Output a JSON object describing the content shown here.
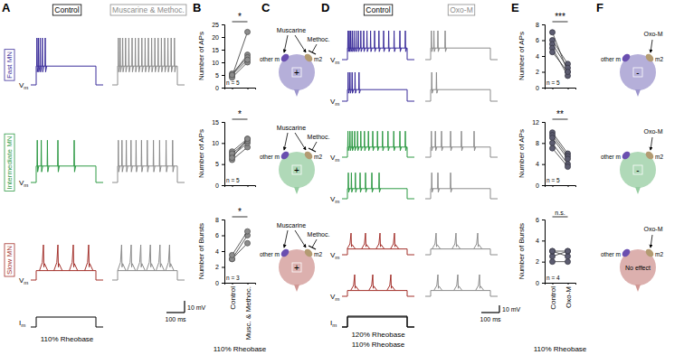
{
  "chart_data": [
    {
      "type": "line",
      "y_label": "Number of APs",
      "categories": [
        null,
        null
      ],
      "series": [
        {
          "values": [
            4.5,
            22
          ]
        },
        {
          "values": [
            5,
            13
          ]
        },
        {
          "values": [
            5.5,
            12
          ]
        },
        {
          "values": [
            4,
            10
          ]
        },
        {
          "values": [
            5,
            11
          ]
        }
      ],
      "color": "#8c8c8c",
      "marker": "circle",
      "ylim": [
        0,
        25
      ],
      "yticks": [
        0,
        5,
        10,
        15,
        20,
        25
      ],
      "annotations": [
        "*",
        "n = 5"
      ]
    },
    {
      "type": "line",
      "y_label": "Number of APs",
      "categories": [
        null,
        null
      ],
      "series": [
        {
          "values": [
            6,
            9
          ]
        },
        {
          "values": [
            7,
            10
          ]
        },
        {
          "values": [
            8,
            11
          ]
        },
        {
          "values": [
            7.5,
            10.5
          ]
        },
        {
          "values": [
            6.5,
            11
          ]
        }
      ],
      "color": "#8c8c8c",
      "marker": "circle",
      "ylim": [
        0,
        15
      ],
      "yticks": [
        0,
        5,
        10,
        15
      ],
      "annotations": [
        "*",
        "n = 5"
      ]
    },
    {
      "type": "line",
      "y_label": "Number of Bursts",
      "x_label": "110% Rheobase",
      "categories": [
        "Control",
        "Musc. & Methoc."
      ],
      "series": [
        {
          "values": [
            3,
            6
          ]
        },
        {
          "values": [
            3,
            5
          ]
        },
        {
          "values": [
            3.5,
            6.5
          ]
        }
      ],
      "color": "#8c8c8c",
      "marker": "circle",
      "ylim": [
        0,
        8
      ],
      "yticks": [
        0,
        2,
        4,
        6,
        8
      ],
      "annotations": [
        "*",
        "n = 3"
      ]
    },
    {
      "type": "line",
      "y_label": "Number of APs",
      "categories": [
        null,
        null
      ],
      "series": [
        {
          "values": [
            7,
            2
          ]
        },
        {
          "values": [
            6,
            3
          ]
        },
        {
          "values": [
            5.5,
            2.5
          ]
        },
        {
          "values": [
            5,
            1.5
          ]
        },
        {
          "values": [
            4.5,
            2
          ]
        }
      ],
      "color": "#5c5c70",
      "marker": "circle",
      "ylim": [
        0,
        8
      ],
      "yticks": [
        0,
        2,
        4,
        6,
        8
      ],
      "annotations": [
        "***",
        "n = 5"
      ]
    },
    {
      "type": "line",
      "y_label": "Number of APs",
      "categories": [
        null,
        null
      ],
      "series": [
        {
          "values": [
            10,
            6
          ]
        },
        {
          "values": [
            9.5,
            5.5
          ]
        },
        {
          "values": [
            9,
            5
          ]
        },
        {
          "values": [
            8,
            4
          ]
        },
        {
          "values": [
            7,
            3.5
          ]
        }
      ],
      "color": "#5c5c70",
      "marker": "circle",
      "ylim": [
        0,
        12
      ],
      "yticks": [
        0,
        4,
        8,
        12
      ],
      "annotations": [
        "**",
        "n = 5"
      ]
    },
    {
      "type": "line",
      "y_label": "Number of Bursts",
      "x_label": "110% Rheobase",
      "categories": [
        "Control",
        "Oxo-M"
      ],
      "series": [
        {
          "values": [
            2.5,
            3
          ]
        },
        {
          "values": [
            3,
            2.5
          ]
        },
        {
          "values": [
            2,
            2
          ]
        },
        {
          "values": [
            3,
            3
          ]
        }
      ],
      "color": "#5c5c70",
      "marker": "circle",
      "ylim": [
        0,
        6
      ],
      "yticks": [
        0,
        2,
        4,
        6
      ],
      "annotations": [
        "n.s.",
        "n = 4"
      ]
    }
  ],
  "figure": {
    "panel_labels": [
      "A",
      "B",
      "C",
      "D",
      "E",
      "F"
    ],
    "rows": [
      {
        "label": "Fast MN",
        "color": "#3b2d9a",
        "plateau_mV": 16,
        "peak_mV": 40
      },
      {
        "label": "Intermediate MN",
        "color": "#2e9a45",
        "plateau_mV": 14,
        "peak_mV": 36
      },
      {
        "label": "Slow MN",
        "color": "#a3302b",
        "plateau_mV": 8,
        "peak_mV": 30
      }
    ],
    "vm": [
      "V",
      "m"
    ],
    "im": [
      "I",
      "m"
    ],
    "panel_a": {
      "conditions": [
        {
          "label": "Control",
          "color": "#000000"
        },
        {
          "label": "Muscarine & Methoc.",
          "color": "#8c8c8c"
        }
      ],
      "duration_ms": 400,
      "step_ms": [
        30,
        360
      ],
      "traces": [
        [
          [
            34,
            42,
            52,
            64,
            80
          ],
          [
            34,
            44,
            58,
            74,
            92,
            110,
            128,
            146,
            164,
            182,
            200,
            218,
            236,
            254,
            272,
            290,
            308,
            326,
            344
          ]
        ],
        [
          [
            36,
            58,
            92,
            150,
            240
          ],
          [
            34,
            54,
            78,
            104,
            132,
            162,
            194,
            228,
            262,
            298,
            334
          ]
        ],
        [
          [
            70,
            150,
            235,
            320
          ],
          [
            52,
            105,
            158,
            211,
            264,
            317
          ]
        ]
      ],
      "currents": [
        {
          "label": "110% Rheobase",
          "amplitude": 110
        }
      ],
      "scale": {
        "mV": 10,
        "ms": 100,
        "mV_label": "10 mV",
        "ms_label": "100 ms"
      }
    },
    "panel_c": {
      "agonist": "Muscarine",
      "antagonist": "Methoc.",
      "receptors": [
        "other m",
        "m2"
      ],
      "effects": [
        "+",
        "+",
        "+"
      ]
    },
    "panel_d": {
      "conditions": [
        {
          "label": "Control",
          "color": "#000000"
        },
        {
          "label": "Oxo-M",
          "color": "#8c8c8c"
        }
      ],
      "duration_ms": 400,
      "step_ms": [
        30,
        360
      ],
      "traces": [
        [
          [
            [
              33,
              40,
              48,
              57,
              67,
              78,
              90,
              104,
              120,
              138,
              158,
              180,
              204,
              230,
              258,
              288,
              320,
              350
            ],
            [
              34,
              44,
              56,
              72,
              94
            ]
          ],
          [
            [
              34,
              48,
              70,
              110
            ],
            [
              36,
              62
            ]
          ]
        ],
        [
          [
            [
              33,
              44,
              56,
              70,
              86,
              104,
              124,
              146,
              170,
              196,
              224,
              254,
              286,
              320,
              350
            ],
            [
              35,
              52,
              74,
              100,
              130,
              165,
              205
            ]
          ],
          [
            [
              34,
              56,
              90,
              140,
              200,
              270
            ],
            [
              36,
              70,
              140
            ]
          ]
        ],
        [
          [
            [
              50,
              130,
              210,
              290
            ],
            [
              70,
              170,
              270
            ]
          ],
          [
            [
              60,
              170,
              290
            ],
            [
              70,
              180,
              300
            ]
          ]
        ]
      ],
      "currents": [
        {
          "label": "120% Rheobase",
          "amplitude": 120
        },
        {
          "label": "110% Rheobase",
          "amplitude": 110
        }
      ],
      "scale": {
        "mV": 10,
        "ms": 100,
        "mV_label": "10 mV",
        "ms_label": "100 ms"
      }
    },
    "panel_f": {
      "agonist": "Oxo-M",
      "receptors": [
        "other m",
        "m2"
      ],
      "effects": [
        "-",
        "-",
        "No effect"
      ]
    }
  }
}
